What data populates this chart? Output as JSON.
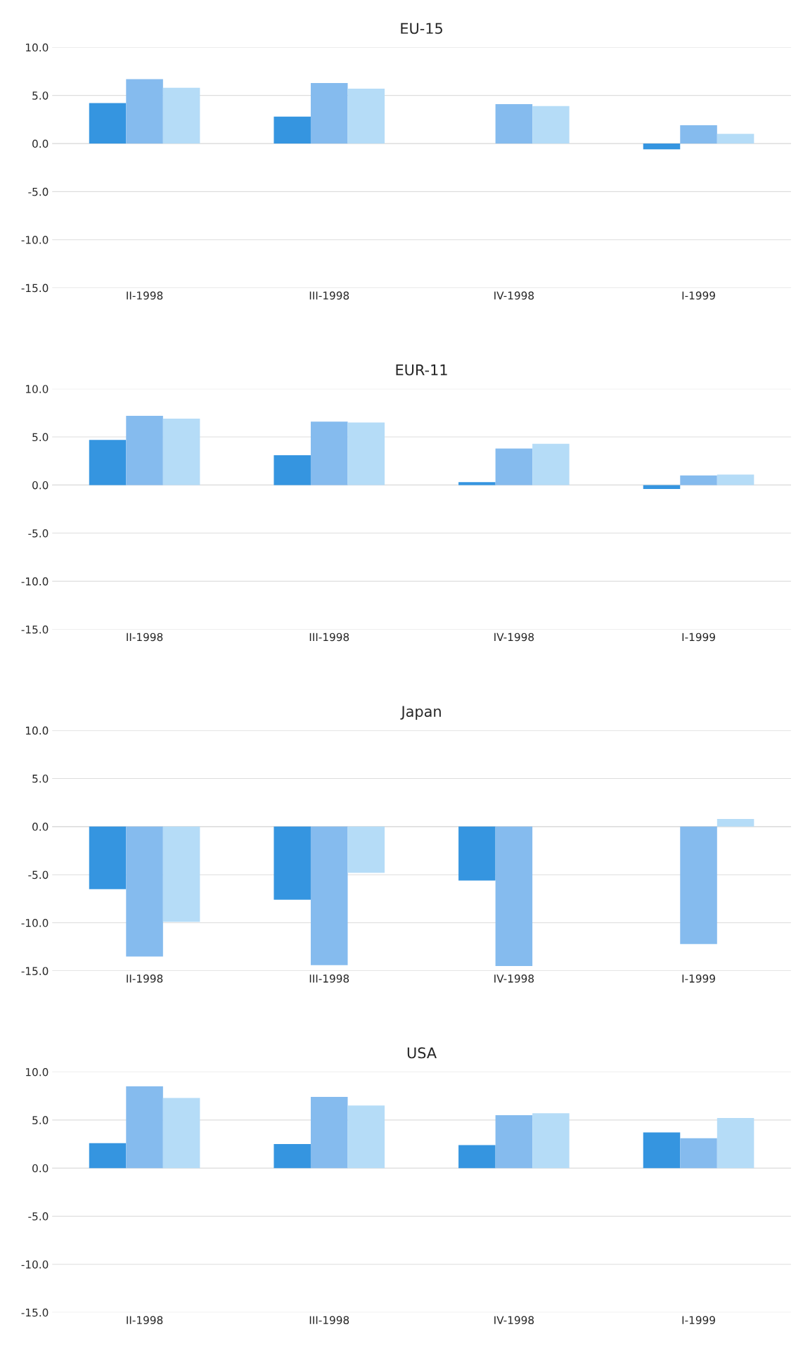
{
  "chart_data": [
    {
      "type": "bar",
      "title": "EU-15",
      "categories": [
        "II-1998",
        "III-1998",
        "IV-1998",
        "I-1999"
      ],
      "ylim": [
        -15,
        10
      ],
      "yticks": [
        {
          "value": -15,
          "label": "-15.0"
        },
        {
          "value": -10,
          "label": "-10.0"
        },
        {
          "value": -5,
          "label": "-5.0"
        },
        {
          "value": 0,
          "label": "0.0"
        },
        {
          "value": 5,
          "label": "5.0"
        },
        {
          "value": 10,
          "label": "10.0"
        }
      ],
      "grid": "y",
      "series": [
        {
          "color": "#3595e0",
          "values": [
            4.2,
            2.8,
            null,
            -0.6
          ]
        },
        {
          "color": "#85bbee",
          "values": [
            6.7,
            6.3,
            4.1,
            1.9
          ]
        },
        {
          "color": "#b5dcf7",
          "values": [
            5.8,
            5.7,
            3.9,
            1.0
          ]
        }
      ]
    },
    {
      "type": "bar",
      "title": "EUR-11",
      "categories": [
        "II-1998",
        "III-1998",
        "IV-1998",
        "I-1999"
      ],
      "ylim": [
        -15,
        10
      ],
      "yticks": [
        {
          "value": -15,
          "label": "-15.0"
        },
        {
          "value": -10,
          "label": "-10.0"
        },
        {
          "value": -5,
          "label": "-5.0"
        },
        {
          "value": 0,
          "label": "0.0"
        },
        {
          "value": 5,
          "label": "5.0"
        },
        {
          "value": 10,
          "label": "10.0"
        }
      ],
      "grid": "y",
      "series": [
        {
          "color": "#3595e0",
          "values": [
            4.7,
            3.1,
            0.3,
            -0.4
          ]
        },
        {
          "color": "#85bbee",
          "values": [
            7.2,
            6.6,
            3.8,
            1.0
          ]
        },
        {
          "color": "#b5dcf7",
          "values": [
            6.9,
            6.5,
            4.3,
            1.1
          ]
        }
      ]
    },
    {
      "type": "bar",
      "title": "Japan",
      "categories": [
        "II-1998",
        "III-1998",
        "IV-1998",
        "I-1999"
      ],
      "ylim": [
        -15,
        10
      ],
      "yticks": [
        {
          "value": -15,
          "label": "-15.0"
        },
        {
          "value": -10,
          "label": "-10.0"
        },
        {
          "value": -5,
          "label": "-5.0"
        },
        {
          "value": 0,
          "label": "0.0"
        },
        {
          "value": 5,
          "label": "5.0"
        },
        {
          "value": 10,
          "label": "10.0"
        }
      ],
      "grid": "y",
      "series": [
        {
          "color": "#3595e0",
          "values": [
            -6.5,
            -7.6,
            -5.6,
            null
          ]
        },
        {
          "color": "#85bbee",
          "values": [
            -13.5,
            -14.4,
            -14.5,
            -12.2
          ]
        },
        {
          "color": "#b5dcf7",
          "values": [
            -9.9,
            -4.8,
            null,
            0.8
          ]
        }
      ]
    },
    {
      "type": "bar",
      "title": "USA",
      "categories": [
        "II-1998",
        "III-1998",
        "IV-1998",
        "I-1999"
      ],
      "ylim": [
        -15,
        10
      ],
      "yticks": [
        {
          "value": -15,
          "label": "-15.0"
        },
        {
          "value": -10,
          "label": "-10.0"
        },
        {
          "value": -5,
          "label": "-5.0"
        },
        {
          "value": 0,
          "label": "0.0"
        },
        {
          "value": 5,
          "label": "5.0"
        },
        {
          "value": 10,
          "label": "10.0"
        }
      ],
      "grid": "y",
      "series": [
        {
          "color": "#3595e0",
          "values": [
            2.6,
            2.5,
            2.4,
            3.7
          ]
        },
        {
          "color": "#85bbee",
          "values": [
            8.5,
            7.4,
            5.5,
            3.1
          ]
        },
        {
          "color": "#b5dcf7",
          "values": [
            7.3,
            6.5,
            5.7,
            5.2
          ]
        }
      ]
    }
  ]
}
